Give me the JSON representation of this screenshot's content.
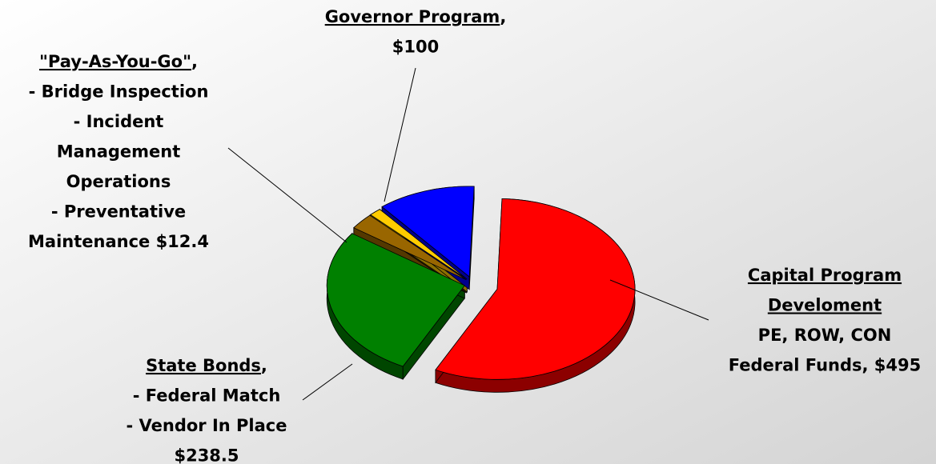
{
  "chart_data": {
    "type": "pie3d",
    "slices": [
      {
        "title_lines": [
          "Capital Program ",
          "Develoment "
        ],
        "lines": [
          "PE, ROW, CON",
          "Federal Funds, $495"
        ],
        "value": 495,
        "color": "#ff0000"
      },
      {
        "title_lines": [
          "State Bonds"
        ],
        "suffix": ",",
        "lines": [
          "- Federal Match",
          "- Vendor In Place",
          "$238.5"
        ],
        "value": 238.5,
        "color": "#008000"
      },
      {
        "value": 25,
        "color": "#996600"
      },
      {
        "title_lines": [
          "\"Pay-As-You-Go\""
        ],
        "suffix": ",",
        "lines": [
          "- Bridge Inspection",
          "- Incident",
          "Management",
          "Operations",
          "- Preventative",
          "Maintenance $12.4"
        ],
        "value": 12.4,
        "color": "#ffcc00"
      },
      {
        "title_lines": [
          "Governor Program"
        ],
        "suffix": ",",
        "lines": [
          "$100"
        ],
        "value": 100,
        "color": "#0000ff"
      }
    ]
  }
}
